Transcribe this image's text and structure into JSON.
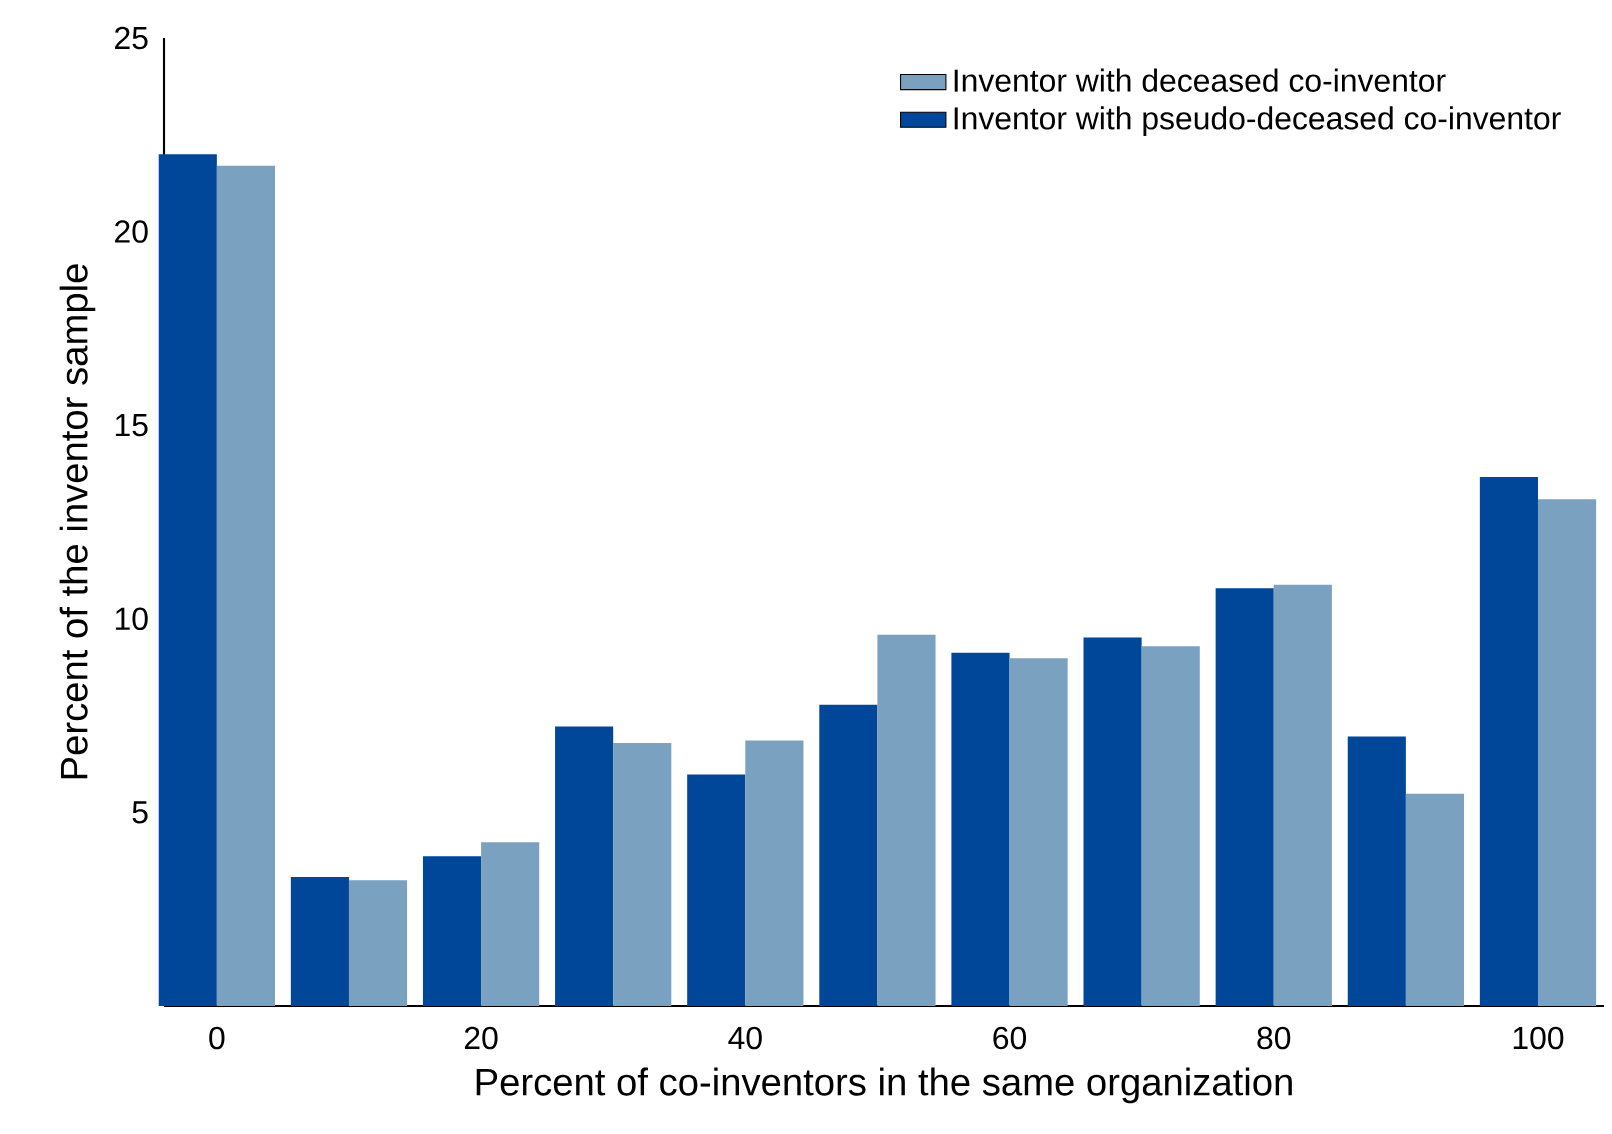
{
  "chart_data": {
    "type": "bar",
    "xlabel": "Percent of co-inventors in the same organization",
    "ylabel": "Percent of the inventor sample",
    "x": [
      0,
      10,
      20,
      30,
      40,
      50,
      60,
      70,
      80,
      90,
      100
    ],
    "series": [
      {
        "name": "Inventor with pseudo-deceased co-inventor",
        "color": "#00479a",
        "values": [
          22.0,
          3.33,
          3.87,
          7.22,
          5.98,
          7.78,
          9.12,
          9.52,
          10.79,
          6.96,
          13.66
        ]
      },
      {
        "name": "Inventor with deceased co-inventor",
        "color": "#7aa1bf",
        "values": [
          21.7,
          3.25,
          4.23,
          6.79,
          6.86,
          9.59,
          8.98,
          9.29,
          10.88,
          5.48,
          13.09
        ]
      }
    ],
    "xlim": [
      -4,
      105
    ],
    "xticks": [
      0,
      20,
      40,
      60,
      80,
      100
    ],
    "ylim": [
      0,
      25
    ],
    "yticks": [
      5,
      10,
      15,
      20,
      25
    ],
    "grid": false,
    "legend": "top right"
  }
}
